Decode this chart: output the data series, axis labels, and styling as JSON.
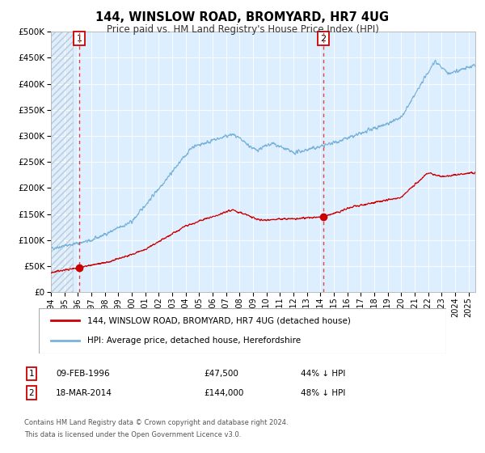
{
  "title": "144, WINSLOW ROAD, BROMYARD, HR7 4UG",
  "subtitle": "Price paid vs. HM Land Registry's House Price Index (HPI)",
  "legend_line1": "144, WINSLOW ROAD, BROMYARD, HR7 4UG (detached house)",
  "legend_line2": "HPI: Average price, detached house, Herefordshire",
  "annotation1_label": "1",
  "annotation1_date": "09-FEB-1996",
  "annotation1_price": "£47,500",
  "annotation1_hpi": "44% ↓ HPI",
  "annotation2_label": "2",
  "annotation2_date": "18-MAR-2014",
  "annotation2_price": "£144,000",
  "annotation2_hpi": "48% ↓ HPI",
  "footnote_line1": "Contains HM Land Registry data © Crown copyright and database right 2024.",
  "footnote_line2": "This data is licensed under the Open Government Licence v3.0.",
  "hpi_color": "#7ab3d9",
  "price_color": "#cc0000",
  "dot_color": "#cc0000",
  "vline_color": "#dd4444",
  "plot_bg_color": "#ddeeff",
  "hatch_color": "#c0c8d0",
  "grid_color": "#ffffff",
  "ylim": [
    0,
    500000
  ],
  "yticks": [
    0,
    50000,
    100000,
    150000,
    200000,
    250000,
    300000,
    350000,
    400000,
    450000,
    500000
  ],
  "sale1_x": 1996.12,
  "sale1_y": 47500,
  "sale2_x": 2014.21,
  "sale2_y": 144000,
  "xmin": 1994.0,
  "xmax": 2025.5,
  "hatch_end": 1995.6
}
